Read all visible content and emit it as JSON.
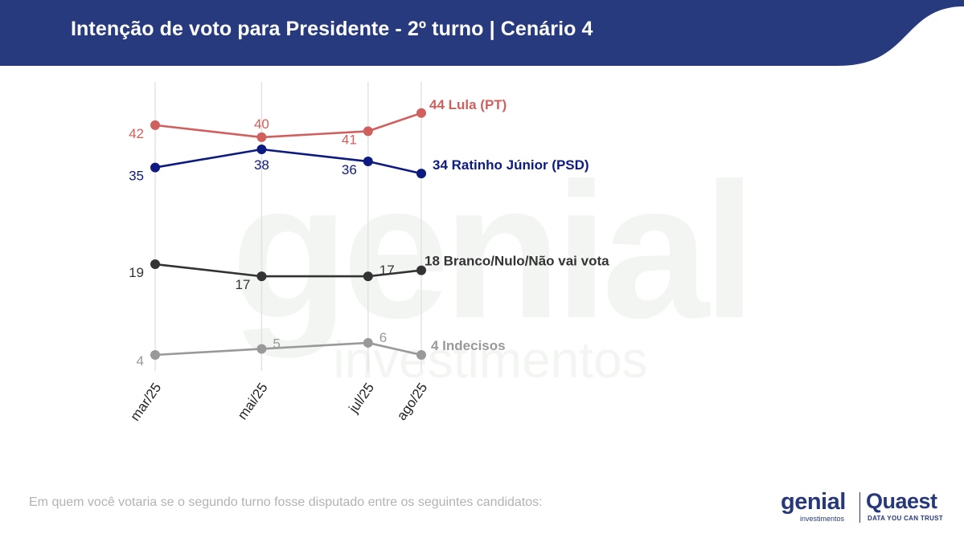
{
  "header": {
    "title": "Intenção de voto para Presidente - 2º turno | Cenário 4",
    "background": "#263a7d"
  },
  "footnote": "Em quem você votaria se o segundo turno fosse disputado entre os seguintes candidatos:",
  "watermark": {
    "word": "genial",
    "sub": "investimentos"
  },
  "logos": {
    "genial": {
      "word": "genial",
      "sub": "investimentos"
    },
    "quaest": {
      "word": "Quaest",
      "sub": "DATA YOU CAN TRUST"
    },
    "color": "#26387a"
  },
  "chart_data": {
    "type": "line",
    "categories": [
      "mar/25",
      "mai/25",
      "jul/25",
      "ago/25"
    ],
    "x_positions_months": [
      3,
      5,
      7,
      8
    ],
    "grid": "vertical lines at each category",
    "legend": "end-of-line labels",
    "ylim": [
      2,
      48
    ],
    "series": [
      {
        "name": "Lula (PT)",
        "values": [
          42,
          40,
          41,
          44
        ],
        "color": "#d0605e",
        "end_label": "44 Lula (PT)"
      },
      {
        "name": "Ratinho Júnior (PSD)",
        "values": [
          35,
          38,
          36,
          34
        ],
        "color": "#0d1a80",
        "end_label": "34 Ratinho Júnior (PSD)"
      },
      {
        "name": "Branco/Nulo/Não vai vota",
        "values": [
          19,
          17,
          17,
          18
        ],
        "color": "#333333",
        "end_label": "18 Branco/Nulo/Não vai vota"
      },
      {
        "name": "Indecisos",
        "values": [
          4,
          5,
          6,
          4
        ],
        "color": "#999999",
        "end_label": "4 Indecisos"
      }
    ]
  }
}
